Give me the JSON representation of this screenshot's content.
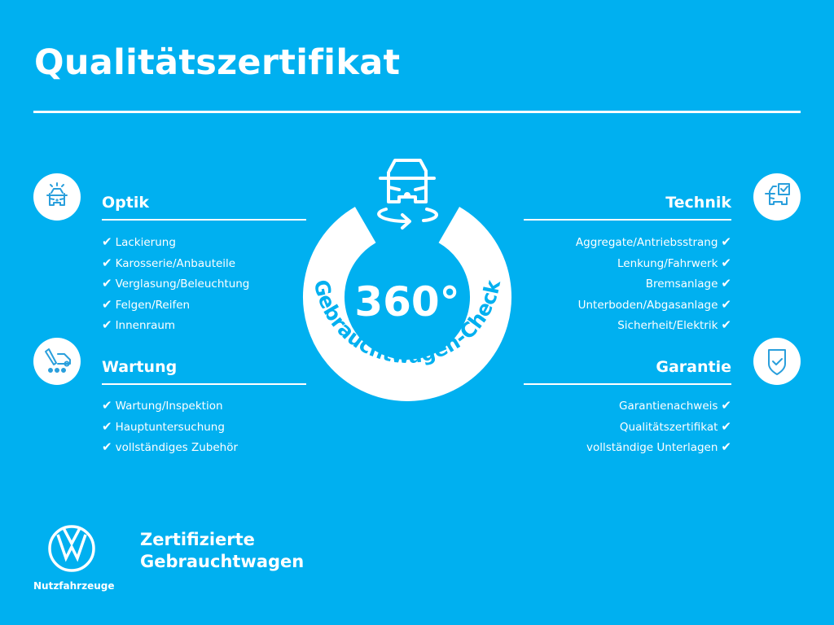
{
  "header": {
    "title": "Qualitätszertifikat"
  },
  "center": {
    "degrees": "360°",
    "ring_text": "Gebrauchtwagen-Check"
  },
  "check_glyph": "✔",
  "sections": {
    "optik": {
      "title": "Optik",
      "icon": "car-front-lights-icon",
      "items": [
        "Lackierung",
        "Karosserie/Anbauteile",
        "Verglasung/Beleuchtung",
        "Felgen/Reifen",
        "Innenraum"
      ]
    },
    "wartung": {
      "title": "Wartung",
      "icon": "van-wrench-icon",
      "items": [
        "Wartung/Inspektion",
        "Hauptuntersuchung",
        "vollständiges Zubehör"
      ]
    },
    "technik": {
      "title": "Technik",
      "icon": "car-checklist-icon",
      "items": [
        "Aggregate/Antriebsstrang",
        "Lenkung/Fahrwerk",
        "Bremsanlage",
        "Unterboden/Abgasanlage",
        "Sicherheit/Elektrik"
      ]
    },
    "garantie": {
      "title": "Garantie",
      "icon": "shield-check-icon",
      "items": [
        "Garantienachweis",
        "Qualitätszertifikat",
        "vollständige Unterlagen"
      ]
    }
  },
  "footer": {
    "brand_sub": "Nutzfahrzeuge",
    "tagline_1": "Zertifizierte",
    "tagline_2": "Gebrauchtwagen"
  },
  "colors": {
    "background": "#00b0f0",
    "foreground": "#ffffff",
    "icon_stroke": "#2a9fdc"
  }
}
